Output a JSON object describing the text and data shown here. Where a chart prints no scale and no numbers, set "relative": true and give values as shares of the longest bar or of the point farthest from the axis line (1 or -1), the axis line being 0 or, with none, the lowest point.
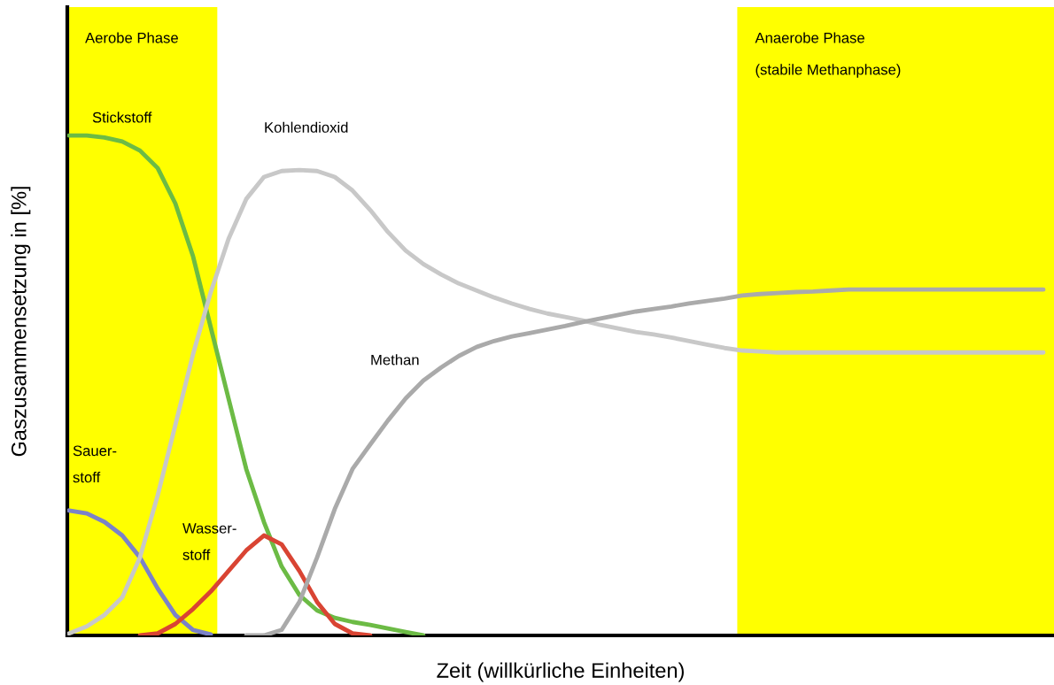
{
  "chart_data": {
    "type": "line",
    "relative": true,
    "xlabel": "Zeit (willkürliche Einheiten)",
    "ylabel": "Gaszusammensetzung in [%]",
    "categories": [
      null,
      null,
      null,
      null,
      null,
      null,
      null,
      null,
      null,
      null,
      null,
      null,
      null,
      null,
      null,
      null,
      null,
      null,
      null,
      null,
      null,
      null,
      null,
      null,
      null,
      null,
      null,
      null,
      null,
      null,
      null,
      null,
      null,
      null,
      null,
      null,
      null,
      null,
      null,
      null,
      null,
      null,
      null,
      null,
      null,
      null,
      null,
      null,
      null,
      null,
      null,
      null,
      null,
      null,
      null,
      null
    ],
    "annotations": [
      "Aerobe Phase",
      "Anaerobe Phase\n\n(stabile Methanphase)"
    ],
    "series": [
      {
        "name": "Stickstoff",
        "color": "#6cbb45",
        "values": [
          1.0,
          1.0,
          0.996,
          0.988,
          0.97,
          0.935,
          0.864,
          0.758,
          0.616,
          0.474,
          0.333,
          0.227,
          0.138,
          0.081,
          0.05,
          0.035,
          0.027,
          0.021,
          0.014,
          0.007,
          0.0,
          null,
          null,
          null,
          null,
          null,
          null,
          null,
          null,
          null,
          null,
          null,
          null,
          null,
          null,
          null,
          null,
          null,
          null,
          null,
          null,
          null,
          null,
          null,
          null,
          null,
          null,
          null,
          null,
          null,
          null,
          null,
          null,
          null,
          null,
          null
        ]
      },
      {
        "name": "Sauer-\nstoff",
        "color": "#7b82c8",
        "values": [
          0.25,
          0.244,
          0.227,
          0.2,
          0.156,
          0.094,
          0.041,
          0.011,
          0.002,
          null,
          null,
          null,
          null,
          null,
          null,
          null,
          null,
          null,
          null,
          null,
          null,
          null,
          null,
          null,
          null,
          null,
          null,
          null,
          null,
          null,
          null,
          null,
          null,
          null,
          null,
          null,
          null,
          null,
          null,
          null,
          null,
          null,
          null,
          null,
          null,
          null,
          null,
          null,
          null,
          null,
          null,
          null,
          null,
          null,
          null,
          null
        ]
      },
      {
        "name": "Wasser-\nstoff",
        "color": "#d94433",
        "values": [
          null,
          null,
          null,
          null,
          0.0,
          0.004,
          0.023,
          0.053,
          0.088,
          0.129,
          0.17,
          0.2,
          0.182,
          0.129,
          0.067,
          0.023,
          0.004,
          0.0,
          null,
          null,
          null,
          null,
          null,
          null,
          null,
          null,
          null,
          null,
          null,
          null,
          null,
          null,
          null,
          null,
          null,
          null,
          null,
          null,
          null,
          null,
          null,
          null,
          null,
          null,
          null,
          null,
          null,
          null,
          null,
          null,
          null,
          null,
          null,
          null,
          null,
          null
        ]
      },
      {
        "name": "Kohlendioxid",
        "color": "#c8c8c8",
        "values": [
          0.004,
          0.018,
          0.041,
          0.076,
          0.156,
          0.28,
          0.421,
          0.563,
          0.687,
          0.793,
          0.873,
          0.917,
          0.929,
          0.931,
          0.929,
          0.917,
          0.89,
          0.851,
          0.807,
          0.77,
          0.743,
          0.722,
          0.704,
          0.69,
          0.676,
          0.664,
          0.653,
          0.644,
          0.637,
          0.63,
          0.621,
          0.614,
          0.607,
          0.602,
          0.596,
          0.589,
          0.582,
          0.575,
          0.57,
          0.568,
          0.566,
          0.566,
          0.566,
          0.566,
          0.566,
          0.566,
          0.566,
          0.566,
          0.566,
          0.566,
          0.566,
          0.566,
          0.566,
          0.566,
          0.566,
          0.566
        ]
      },
      {
        "name": "Methan",
        "color": "#aaaaaa",
        "values": [
          null,
          null,
          null,
          null,
          null,
          null,
          null,
          null,
          null,
          null,
          0.0,
          0.0,
          0.011,
          0.067,
          0.156,
          0.253,
          0.333,
          0.382,
          0.43,
          0.474,
          0.51,
          0.536,
          0.559,
          0.577,
          0.589,
          0.598,
          0.605,
          0.612,
          0.619,
          0.627,
          0.634,
          0.641,
          0.648,
          0.653,
          0.658,
          0.664,
          0.669,
          0.674,
          0.68,
          0.683,
          0.685,
          0.687,
          0.688,
          0.69,
          0.692,
          0.692,
          0.692,
          0.692,
          0.692,
          0.692,
          0.692,
          0.692,
          0.692,
          0.692,
          0.692,
          0.692
        ]
      }
    ]
  }
}
